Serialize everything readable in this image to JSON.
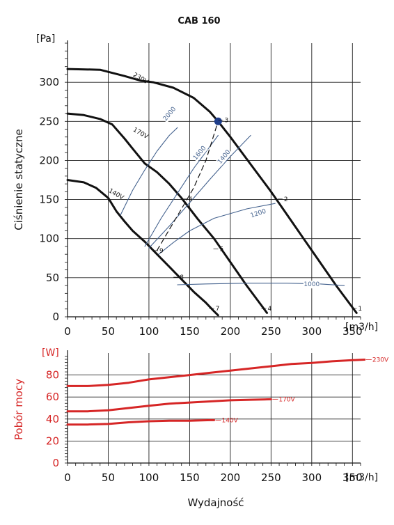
{
  "chart_data": [
    {
      "type": "line",
      "title": "CAB 160",
      "ylabel": "Ciśnienie statyczne",
      "y_unit": "[Pa]",
      "x_unit": "[m3/h]",
      "xlim": [
        0,
        360
      ],
      "ylim": [
        0,
        350
      ],
      "x_ticks": [
        "0",
        "50",
        "100",
        "150",
        "200",
        "250",
        "300",
        "350"
      ],
      "y_ticks": [
        "0",
        "50",
        "100",
        "150",
        "200",
        "250",
        "300"
      ],
      "grid": true,
      "series": [
        {
          "name": "230V",
          "color": "#111111",
          "points": [
            [
              0,
              317
            ],
            [
              40,
              316
            ],
            [
              70,
              308
            ],
            [
              90,
              302
            ],
            [
              105,
              300
            ],
            [
              130,
              293
            ],
            [
              155,
              280
            ],
            [
              175,
              262
            ],
            [
              185,
              250
            ],
            [
              200,
              230
            ],
            [
              225,
              195
            ],
            [
              250,
              160
            ],
            [
              270,
              130
            ],
            [
              290,
              100
            ],
            [
              310,
              70
            ],
            [
              330,
              40
            ],
            [
              350,
              12
            ],
            [
              355,
              5
            ]
          ]
        },
        {
          "name": "170V",
          "color": "#111111",
          "points": [
            [
              0,
              260
            ],
            [
              20,
              258
            ],
            [
              40,
              253
            ],
            [
              55,
              246
            ],
            [
              70,
              228
            ],
            [
              80,
              215
            ],
            [
              95,
              196
            ],
            [
              110,
              185
            ],
            [
              125,
              170
            ],
            [
              140,
              152
            ],
            [
              160,
              125
            ],
            [
              180,
              100
            ],
            [
              200,
              70
            ],
            [
              220,
              40
            ],
            [
              240,
              12
            ],
            [
              245,
              5
            ]
          ]
        },
        {
          "name": "140V",
          "color": "#111111",
          "points": [
            [
              0,
              175
            ],
            [
              20,
              172
            ],
            [
              35,
              165
            ],
            [
              50,
              152
            ],
            [
              60,
              135
            ],
            [
              70,
              122
            ],
            [
              80,
              110
            ],
            [
              95,
              96
            ],
            [
              110,
              80
            ],
            [
              125,
              64
            ],
            [
              140,
              48
            ],
            [
              155,
              32
            ],
            [
              170,
              18
            ],
            [
              180,
              7
            ],
            [
              185,
              2
            ]
          ]
        },
        {
          "name": "2000",
          "color": "#44628e",
          "points": [
            [
              65,
              130
            ],
            [
              80,
              162
            ],
            [
              95,
              188
            ],
            [
              110,
              212
            ],
            [
              125,
              232
            ],
            [
              135,
              242
            ]
          ]
        },
        {
          "name": "1600",
          "color": "#44628e",
          "points": [
            [
              95,
              90
            ],
            [
              115,
              126
            ],
            [
              135,
              158
            ],
            [
              155,
              190
            ],
            [
              175,
              218
            ],
            [
              185,
              232
            ]
          ]
        },
        {
          "name": "1400",
          "color": "#44628e",
          "points": [
            [
              100,
              88
            ],
            [
              125,
              116
            ],
            [
              150,
              146
            ],
            [
              175,
              176
            ],
            [
              200,
              205
            ],
            [
              225,
              232
            ]
          ]
        },
        {
          "name": "1200",
          "color": "#44628e",
          "points": [
            [
              112,
              80
            ],
            [
              130,
              95
            ],
            [
              150,
              110
            ],
            [
              180,
              126
            ],
            [
              220,
              138
            ],
            [
              255,
              145
            ]
          ]
        },
        {
          "name": "1000",
          "color": "#44628e",
          "points": [
            [
              135,
              41
            ],
            [
              170,
              42
            ],
            [
              220,
              43
            ],
            [
              270,
              43
            ],
            [
              310,
              42
            ],
            [
              340,
              40
            ]
          ]
        },
        {
          "name": "",
          "color": "#111111",
          "dashed": true,
          "points": [
            [
              110,
              85
            ],
            [
              140,
              138
            ],
            [
              155,
              165
            ],
            [
              170,
              200
            ],
            [
              185,
              250
            ]
          ]
        }
      ],
      "curve_labels": [
        {
          "text": "230V",
          "x": 80,
          "y": 308
        },
        {
          "text": "170V",
          "x": 80,
          "y": 238
        },
        {
          "text": "140V",
          "x": 50,
          "y": 160
        }
      ],
      "iso_labels": [
        {
          "text": "2000",
          "x": 127,
          "y": 258
        },
        {
          "text": "1600",
          "x": 164,
          "y": 208
        },
        {
          "text": "1400",
          "x": 194,
          "y": 203
        },
        {
          "text": "1200",
          "x": 235,
          "y": 130
        },
        {
          "text": "1000",
          "x": 300,
          "y": 39
        }
      ],
      "point_labels": [
        {
          "text": "1",
          "x": 356,
          "y": 8
        },
        {
          "text": "2",
          "x": 265,
          "y": 148
        },
        {
          "text": "3",
          "x": 192,
          "y": 249
        },
        {
          "text": "4",
          "x": 245,
          "y": 8
        },
        {
          "text": "5",
          "x": 186,
          "y": 84
        },
        {
          "text": "6",
          "x": 148,
          "y": 148
        },
        {
          "text": "7",
          "x": 181,
          "y": 8
        },
        {
          "text": "8",
          "x": 137,
          "y": 48
        },
        {
          "text": "9",
          "x": 112,
          "y": 82
        }
      ],
      "marker": {
        "x": 185,
        "y": 250,
        "color": "#1f3d8a"
      }
    },
    {
      "type": "line",
      "ylabel": "Pobór mocy",
      "y_unit": "[W]",
      "x_unit": "[m3/h]",
      "xlabel": "Wydajność",
      "xlim": [
        0,
        360
      ],
      "ylim": [
        0,
        100
      ],
      "x_ticks": [
        "0",
        "50",
        "100",
        "150",
        "200",
        "250",
        "300",
        "350"
      ],
      "y_ticks": [
        "0",
        "20",
        "40",
        "60",
        "80"
      ],
      "grid": true,
      "series": [
        {
          "name": "230V",
          "color": "#d62626",
          "points": [
            [
              0,
              70
            ],
            [
              25,
              70
            ],
            [
              50,
              71
            ],
            [
              75,
              73
            ],
            [
              100,
              76
            ],
            [
              125,
              78
            ],
            [
              150,
              80
            ],
            [
              175,
              82
            ],
            [
              200,
              84
            ],
            [
              225,
              86
            ],
            [
              250,
              88
            ],
            [
              275,
              90
            ],
            [
              300,
              91
            ],
            [
              325,
              92.5
            ],
            [
              350,
              93.5
            ],
            [
              365,
              94
            ]
          ]
        },
        {
          "name": "170V",
          "color": "#d62626",
          "points": [
            [
              0,
              47
            ],
            [
              25,
              47
            ],
            [
              50,
              48
            ],
            [
              75,
              50
            ],
            [
              100,
              52
            ],
            [
              125,
              54
            ],
            [
              150,
              55
            ],
            [
              175,
              56
            ],
            [
              200,
              57
            ],
            [
              225,
              57.5
            ],
            [
              250,
              58
            ]
          ]
        },
        {
          "name": "140V",
          "color": "#d62626",
          "points": [
            [
              0,
              35
            ],
            [
              25,
              35
            ],
            [
              50,
              35.5
            ],
            [
              75,
              37
            ],
            [
              100,
              38
            ],
            [
              125,
              38.5
            ],
            [
              150,
              38.5
            ],
            [
              175,
              39
            ],
            [
              180,
              39
            ]
          ]
        }
      ]
    }
  ]
}
